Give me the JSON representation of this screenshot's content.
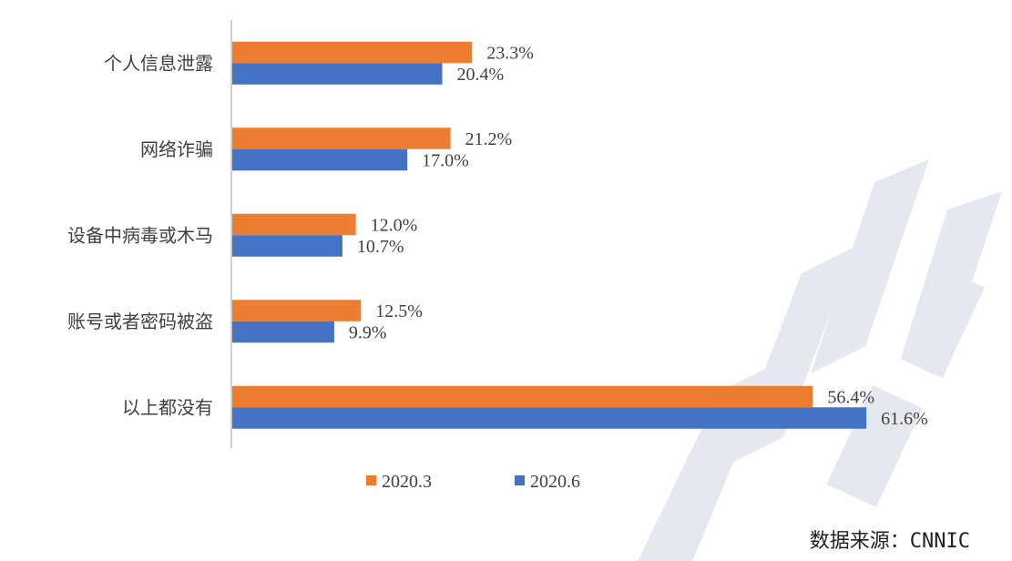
{
  "chart_data": {
    "type": "bar",
    "orientation": "horizontal",
    "categories": [
      "个人信息泄露",
      "网络诈骗",
      "设备中病毒或木马",
      "账号或者密码被盗",
      "以上都没有"
    ],
    "series": [
      {
        "name": "2020.3",
        "color": "#ED7D31",
        "values": [
          23.3,
          21.2,
          12.0,
          12.5,
          56.4
        ],
        "labels": [
          "23.3%",
          "21.2%",
          "12.0%",
          "12.5%",
          "56.4%"
        ]
      },
      {
        "name": "2020.6",
        "color": "#4472C4",
        "values": [
          20.4,
          17.0,
          10.7,
          9.9,
          61.6
        ],
        "labels": [
          "20.4%",
          "17.0%",
          "10.7%",
          "9.9%",
          "61.6%"
        ]
      }
    ],
    "xlim": [
      0,
      70
    ],
    "unit": "%",
    "legend_position": "bottom",
    "grid": false
  },
  "source_label": "数据来源：CNNIC"
}
